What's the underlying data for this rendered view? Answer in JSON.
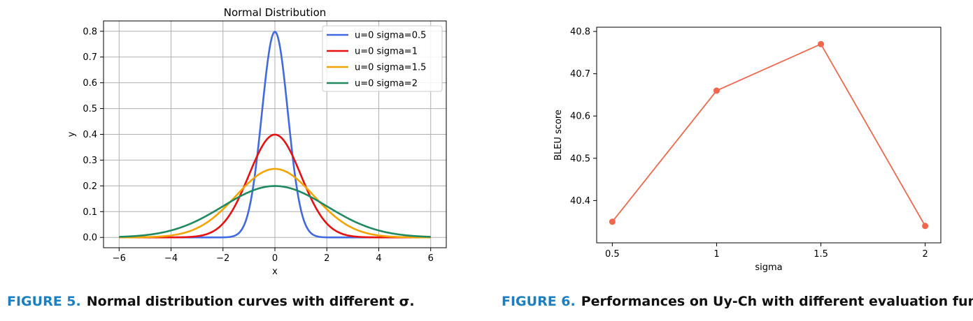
{
  "chart_data": [
    {
      "type": "line",
      "title": "Normal Distribution",
      "xlabel": "x",
      "ylabel": "y",
      "xlim": [
        -6.6,
        6.6
      ],
      "ylim": [
        -0.04,
        0.84
      ],
      "xticks": [
        -6,
        -4,
        -2,
        0,
        2,
        4,
        6
      ],
      "xtick_labels": [
        "−6",
        "−4",
        "−2",
        "0",
        "2",
        "4",
        "6"
      ],
      "yticks": [
        0.0,
        0.1,
        0.2,
        0.3,
        0.4,
        0.5,
        0.6,
        0.7,
        0.8
      ],
      "ytick_labels": [
        "0.0",
        "0.1",
        "0.2",
        "0.3",
        "0.4",
        "0.5",
        "0.6",
        "0.7",
        "0.8"
      ],
      "grid": true,
      "legend": "top-right",
      "x_range": [
        -6,
        6
      ],
      "series": [
        {
          "name": "u=0 sigma=0.5",
          "mu": 0,
          "sigma": 0.5,
          "color": "#4169e1"
        },
        {
          "name": "u=0 sigma=1",
          "mu": 0,
          "sigma": 1,
          "color": "#e8110f"
        },
        {
          "name": "u=0 sigma=1.5",
          "mu": 0,
          "sigma": 1.5,
          "color": "#f5a300"
        },
        {
          "name": "u=0 sigma=2",
          "mu": 0,
          "sigma": 2,
          "color": "#1f8a5f"
        }
      ]
    },
    {
      "type": "line",
      "title": "",
      "xlabel": "sigma",
      "ylabel": "BLEU score",
      "categories": [
        "0.5",
        "1",
        "1.5",
        "2"
      ],
      "x": [
        0.5,
        1,
        1.5,
        2
      ],
      "xlim": [
        0.425,
        2.075
      ],
      "ylim": [
        40.3,
        40.81
      ],
      "yticks": [
        40.4,
        40.5,
        40.6,
        40.7,
        40.8
      ],
      "ytick_labels": [
        "40.4",
        "40.5",
        "40.6",
        "40.7",
        "40.8"
      ],
      "grid": false,
      "series": [
        {
          "values": [
            40.35,
            40.66,
            40.77,
            40.34
          ],
          "color": "#f0674c"
        }
      ]
    }
  ],
  "captions": {
    "fig5": {
      "label": "FIGURE 5.",
      "text": "Normal distribution curves with different σ."
    },
    "fig6": {
      "label": "FIGURE 6.",
      "text": "Performances on Uy-Ch with different evaluation function."
    }
  }
}
